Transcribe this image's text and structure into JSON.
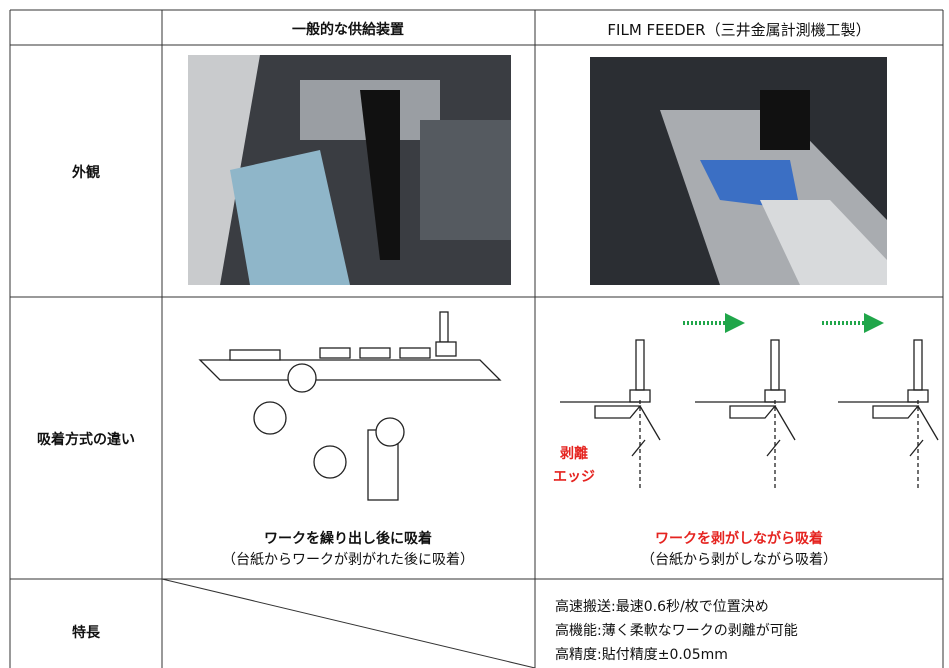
{
  "table": {
    "header": [
      "一般的な供給装置",
      "FILM FEEDER（三井金属計測機工製）"
    ],
    "rows": [
      {
        "label": "外観"
      },
      {
        "label": "吸着方式の違い",
        "general": {
          "caption": "ワークを繰り出し後に吸着",
          "note": "（台紙からワークが剥がれた後に吸着）"
        },
        "film_feeder": {
          "edge_label": [
            "剥離",
            "エッジ"
          ],
          "caption": "ワークを剥がしながら吸着",
          "note": "（台紙から剥がしながら吸着）"
        }
      },
      {
        "label": "特長",
        "film_feeder": [
          "高速搬送:最速0.6秒/枚で位置決め",
          "高機能:薄く柔軟なワークの剥離が可能",
          "高精度:貼付精度±0.05mm"
        ]
      }
    ]
  }
}
